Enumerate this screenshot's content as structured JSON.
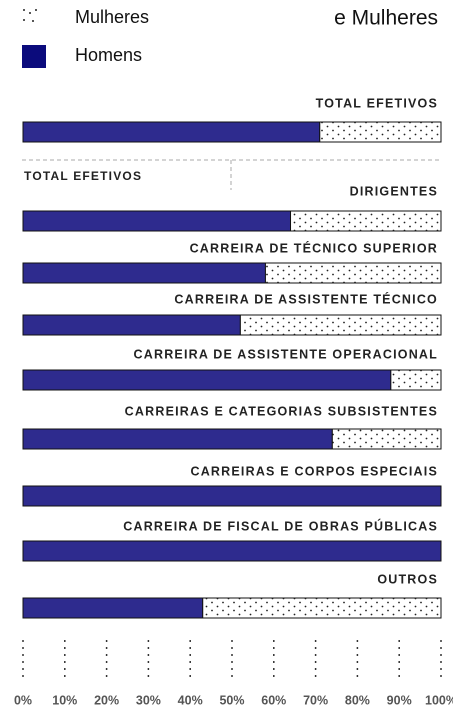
{
  "chart_data": {
    "type": "stacked-bar-horizontal",
    "title": "e Mulheres",
    "section_label": "TOTAL EFETIVOS",
    "categories": [
      "TOTAL EFETIVOS",
      "DIRIGENTES",
      "CARREIRA DE TÉCNICO SUPERIOR",
      "CARREIRA DE ASSISTENTE TÉCNICO",
      "CARREIRA DE ASSISTENTE OPERACIONAL",
      "CARREIRAS E CATEGORIAS SUBSISTENTES",
      "CARREIRAS E CORPOS ESPECIAIS",
      "CARREIRA DE FISCAL DE OBRAS PÚBLICAS",
      "OUTROS"
    ],
    "series": [
      {
        "name": "Homens",
        "color": "#2e2b8e",
        "values": [
          71,
          64,
          58,
          52,
          88,
          74,
          100,
          100,
          43
        ]
      },
      {
        "name": "Mulheres",
        "color": "#ffffff",
        "pattern": "dots",
        "values": [
          29,
          36,
          42,
          48,
          12,
          26,
          0,
          0,
          57
        ]
      }
    ],
    "xlim": [
      0,
      100
    ],
    "xticks": [
      {
        "value": 0,
        "label": "0%"
      },
      {
        "value": 10,
        "label": "10%"
      },
      {
        "value": 20,
        "label": "20%"
      },
      {
        "value": 30,
        "label": "30%"
      },
      {
        "value": 40,
        "label": "40%"
      },
      {
        "value": 50,
        "label": "50%"
      },
      {
        "value": 60,
        "label": "60%"
      },
      {
        "value": 70,
        "label": "70%"
      },
      {
        "value": 80,
        "label": "80%"
      },
      {
        "value": 90,
        "label": "90%"
      },
      {
        "value": 100,
        "label": "100%"
      }
    ],
    "grid": true
  }
}
